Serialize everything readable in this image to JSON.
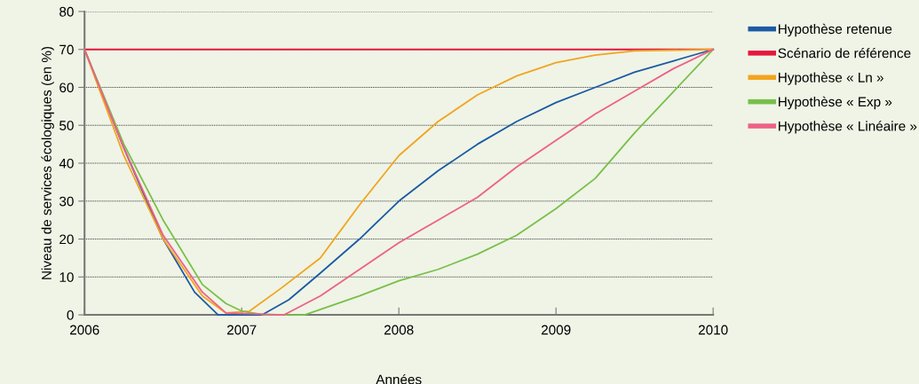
{
  "chart_data": {
    "type": "line",
    "xlabel": "Années",
    "ylabel": "Niveau de services écologiques (en %)",
    "xlim": [
      2006,
      2010
    ],
    "xticks": [
      2006,
      2007,
      2008,
      2009,
      2010
    ],
    "ylim": [
      0,
      80
    ],
    "yticks": [
      0,
      10,
      20,
      30,
      40,
      50,
      60,
      70,
      80
    ],
    "grid": "y",
    "legend": "right",
    "line_style": "solid",
    "marker": "none",
    "series": [
      {
        "name": "Hypothèse retenue",
        "color": "#1b5aa5",
        "x": [
          2006,
          2006.25,
          2006.5,
          2006.7,
          2006.85,
          2007.13,
          2007.3,
          2007.5,
          2007.75,
          2008,
          2008.25,
          2008.5,
          2008.75,
          2009,
          2009.25,
          2009.5,
          2009.75,
          2010
        ],
        "values": [
          70,
          44,
          20,
          6,
          0,
          0,
          4,
          11,
          20,
          30,
          38,
          45,
          51,
          56,
          60,
          64,
          67,
          70
        ]
      },
      {
        "name": "Scénario de référence",
        "color": "#e4183c",
        "x": [
          2006,
          2010
        ],
        "values": [
          70,
          70
        ]
      },
      {
        "name": "Hypothèse « Ln »",
        "color": "#f2a41f",
        "x": [
          2006,
          2006.25,
          2006.5,
          2006.75,
          2006.9,
          2007.05,
          2007.25,
          2007.5,
          2007.75,
          2008,
          2008.25,
          2008.5,
          2008.75,
          2009,
          2009.25,
          2009.5,
          2010
        ],
        "values": [
          70,
          42,
          20,
          5,
          0.5,
          1,
          7,
          15,
          29,
          42,
          51,
          58,
          63,
          66.5,
          68.5,
          69.6,
          70
        ]
      },
      {
        "name": "Hypothèse « Exp »",
        "color": "#79bf4a",
        "x": [
          2006,
          2006.25,
          2006.5,
          2006.75,
          2006.9,
          2007,
          2007.15,
          2007.4,
          2007.75,
          2008,
          2008.25,
          2008.5,
          2008.75,
          2009,
          2009.25,
          2009.5,
          2009.75,
          2010
        ],
        "values": [
          70,
          45,
          25,
          8,
          3,
          1,
          0,
          0,
          5,
          9,
          12,
          16,
          21,
          28,
          36,
          48,
          59,
          70
        ]
      },
      {
        "name": "Hypothèse « Linéaire »",
        "color": "#ee6088",
        "x": [
          2006,
          2006.25,
          2006.5,
          2006.75,
          2006.9,
          2007.27,
          2007.5,
          2007.75,
          2008,
          2008.25,
          2008.5,
          2008.75,
          2009,
          2009.25,
          2009.5,
          2009.75,
          2010
        ],
        "values": [
          70,
          44,
          21,
          6,
          0.5,
          0,
          5,
          12,
          19,
          25,
          31,
          39,
          46,
          53,
          59,
          65,
          70
        ]
      }
    ]
  }
}
